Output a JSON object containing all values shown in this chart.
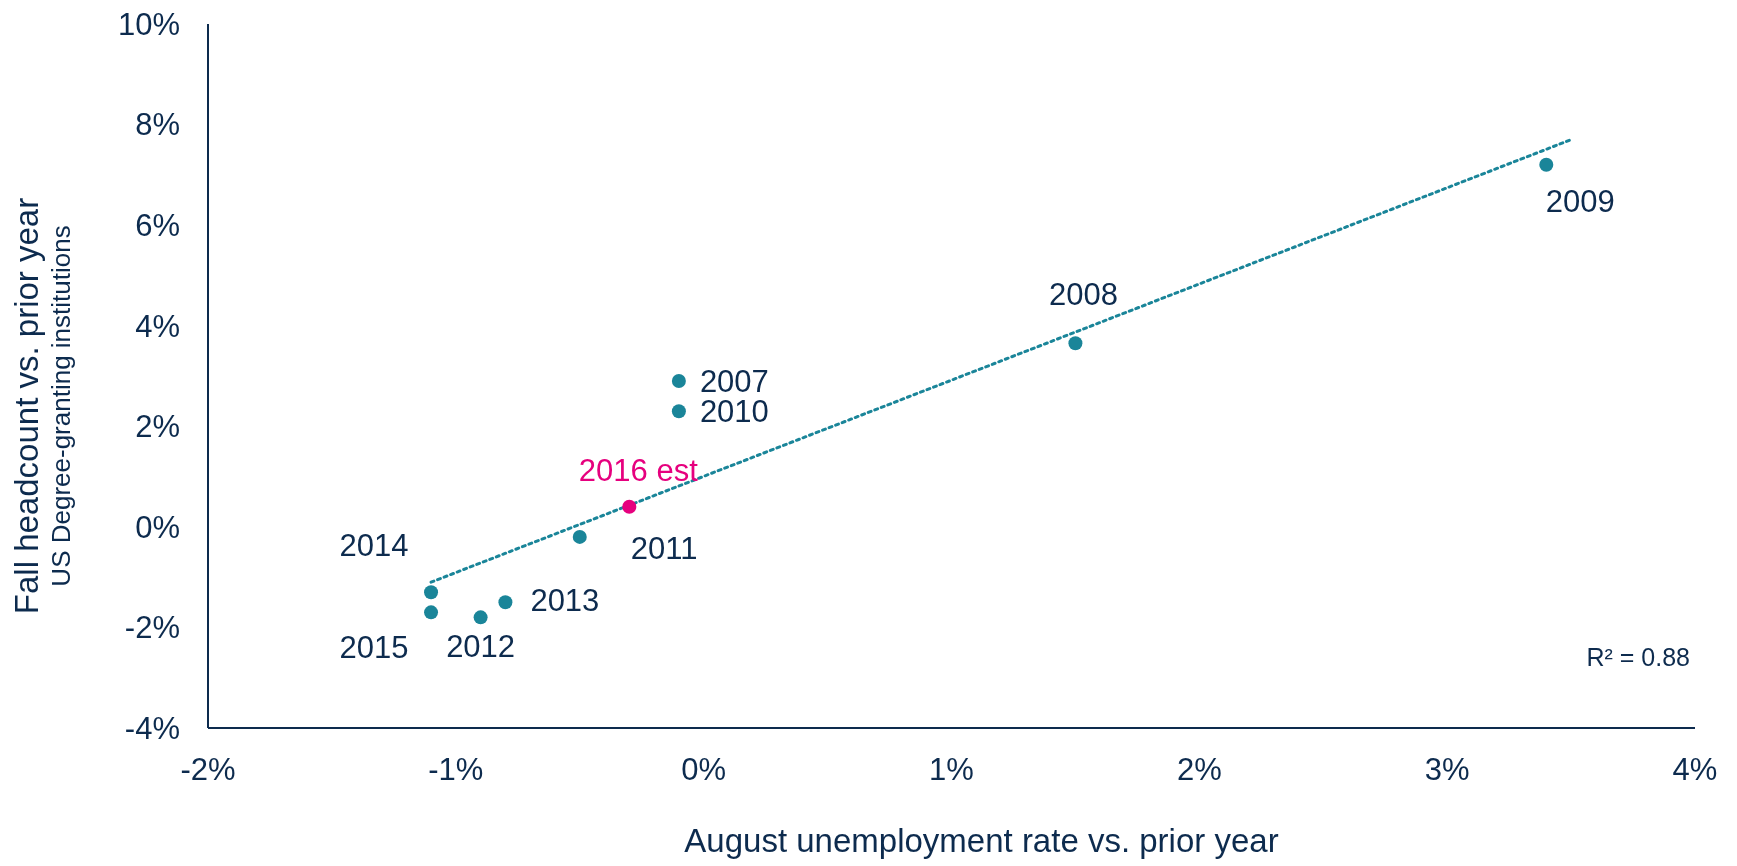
{
  "chart_data": {
    "type": "scatter",
    "xlabel": "August unemployment rate vs. prior year",
    "ylabel": "Fall headcount vs. prior year\nUS Degree-granting institutions",
    "xlim": [
      -2,
      4
    ],
    "xticks": [
      {
        "value": -2,
        "label": "-2%"
      },
      {
        "value": -1,
        "label": "-1%"
      },
      {
        "value": 0,
        "label": "0%"
      },
      {
        "value": 1,
        "label": "1%"
      },
      {
        "value": 2,
        "label": "2%"
      },
      {
        "value": 3,
        "label": "3%"
      },
      {
        "value": 4,
        "label": "4%"
      }
    ],
    "ylim": [
      -4,
      10
    ],
    "yticks": [
      {
        "value": -4,
        "label": "-4%"
      },
      {
        "value": -2,
        "label": "-2%"
      },
      {
        "value": 0,
        "label": "0%"
      },
      {
        "value": 2,
        "label": "2%"
      },
      {
        "value": 4,
        "label": "4%"
      },
      {
        "value": 6,
        "label": "6%"
      },
      {
        "value": 8,
        "label": "8%"
      },
      {
        "value": 10,
        "label": "10%"
      }
    ],
    "grid": false,
    "marker": "circle",
    "series": [
      {
        "color": "#1a8599",
        "x": [
          3.4,
          1.5,
          -0.1,
          -0.1,
          -0.5,
          -1.1,
          -1.1,
          -0.9,
          -0.8
        ],
        "values": [
          7.2,
          3.65,
          2.9,
          2.3,
          -0.2,
          -1.3,
          -1.7,
          -1.8,
          -1.5
        ]
      },
      {
        "name": "2016 est",
        "color": "#e6007e",
        "x": [
          -0.3
        ],
        "values": [
          0.4
        ]
      },
      {
        "type": "line",
        "color": "#1a8599",
        "line_style": "dotted",
        "marker": "none",
        "x": [
          -1.1,
          3.5
        ],
        "values": [
          -1.1,
          7.7
        ]
      }
    ],
    "annotations": [
      {
        "text": "2009",
        "x": 3.4,
        "y": 7.2
      },
      {
        "text": "2008",
        "x": 1.5,
        "y": 3.65
      },
      {
        "text": "2007",
        "x": -0.1,
        "y": 2.9
      },
      {
        "text": "2010",
        "x": -0.1,
        "y": 2.3
      },
      {
        "text": "2011",
        "x": -0.5,
        "y": -0.2
      },
      {
        "text": "2014",
        "x": -1.1,
        "y": -1.3
      },
      {
        "text": "2015",
        "x": -1.1,
        "y": -1.7
      },
      {
        "text": "2012",
        "x": -0.9,
        "y": -1.8
      },
      {
        "text": "2013",
        "x": -0.8,
        "y": -1.5
      },
      "R² = 0.88"
    ]
  }
}
